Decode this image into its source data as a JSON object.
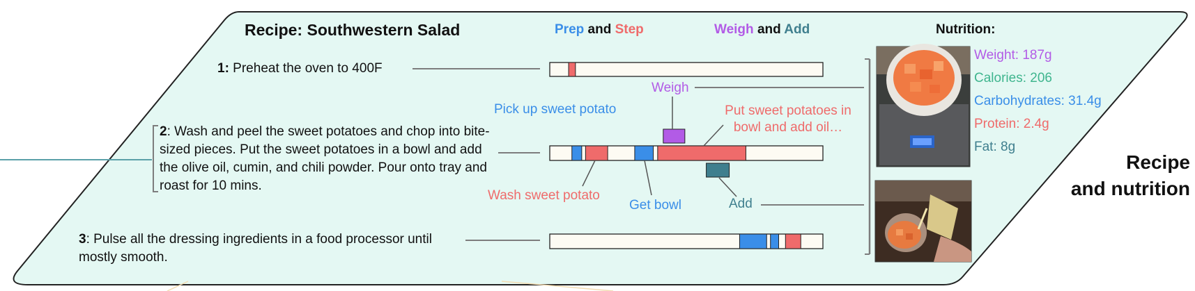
{
  "title": "Recipe: Southwestern Salad",
  "legend": {
    "prep": {
      "word": "Prep",
      "color": "#3a8ee8"
    },
    "and1": "and",
    "step": {
      "word": "Step",
      "color": "#ef6b6b"
    },
    "weigh": {
      "word": "Weigh",
      "color": "#b25be6"
    },
    "and2": "and",
    "add": {
      "word": "Add",
      "color": "#3f7f8e"
    }
  },
  "steps": [
    {
      "num": "1:",
      "text": " Preheat the oven to 400F"
    },
    {
      "num": "2",
      "text": ": Wash and peel the sweet potatoes and chop into bite-sized pieces. Put the sweet potatoes in a bowl and add the olive oil, cumin, and chili powder.  Pour onto tray and roast for 10 mins."
    },
    {
      "num": "3",
      "text": ": Pulse all the dressing ingredients in a food processor until mostly smooth."
    }
  ],
  "timeline": {
    "bar1": [
      {
        "start": 0.069,
        "end": 0.094,
        "kind": "step"
      }
    ],
    "bar2": [
      {
        "start": 0.081,
        "end": 0.117,
        "kind": "prep"
      },
      {
        "start": 0.131,
        "end": 0.212,
        "kind": "step"
      },
      {
        "start": 0.311,
        "end": 0.379,
        "kind": "prep"
      },
      {
        "start": 0.395,
        "end": 0.718,
        "kind": "step"
      }
    ],
    "bar3": [
      {
        "start": 0.695,
        "end": 0.794,
        "kind": "prep"
      },
      {
        "start": 0.808,
        "end": 0.838,
        "kind": "prep"
      },
      {
        "start": 0.863,
        "end": 0.919,
        "kind": "step"
      }
    ],
    "weigh_marker": {
      "at": 0.455
    },
    "add_marker": {
      "at": 0.615
    }
  },
  "annotations": {
    "weigh": {
      "text": "Weigh",
      "color": "#b25be6"
    },
    "pickup": {
      "text": "Pick up sweet potato",
      "color": "#3a8ee8"
    },
    "put": {
      "line1": "Put sweet potatoes in",
      "line2": "bowl and add oil…",
      "color": "#ef6b6b"
    },
    "wash": {
      "text": "Wash sweet potato",
      "color": "#ef6b6b"
    },
    "getbowl": {
      "text": "Get bowl",
      "color": "#3a8ee8"
    },
    "add": {
      "text": "Add",
      "color": "#3f7f8e"
    }
  },
  "nutrition": {
    "heading": "Nutrition:",
    "weight": {
      "text": "Weight: 187g",
      "color": "#b25be6"
    },
    "calories": {
      "text": "Calories: 206",
      "color": "#3fb58e"
    },
    "carbs": {
      "text": "Carbohydrates: 31.4g",
      "color": "#3a8ee8"
    },
    "protein": {
      "text": "Protein: 2.4g",
      "color": "#ef6b6b"
    },
    "fat": {
      "text": "Fat: 8g",
      "color": "#3f7f8e"
    }
  },
  "side_label": {
    "line1": "Recipe",
    "line2": "and nutrition"
  },
  "colors": {
    "panel_fill": "#e4f8f3",
    "panel_stroke": "#222222",
    "bar_fill": "#fdfbf3",
    "line": "#7d7d7d",
    "prep": "#3a8ee8",
    "step": "#ef6b6b",
    "weigh": "#b25be6",
    "add": "#3f7f8e"
  }
}
